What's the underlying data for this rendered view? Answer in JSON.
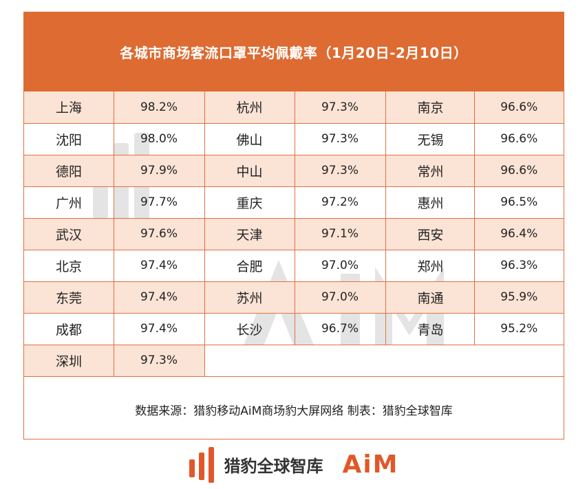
{
  "title": "各城市商场客流口罩平均佩戴率（1月20日-2月10日）",
  "source_note": "数据来源：猎豹移动AiM商场豹大屏网络  制表：猎豹全球智库",
  "footer": {
    "brand_name": "猎豹全球智库",
    "aim_logo": "AiM"
  },
  "colors": {
    "header": "#dd6b32",
    "shade": "#fbe3d5",
    "border": "#e07040",
    "aim": "#e0582a"
  },
  "chart_data": {
    "type": "table",
    "title": "各城市商场客流口罩平均佩戴率（1月20日-2月10日）",
    "unit": "%",
    "columns": [
      [
        {
          "city": "上海",
          "value": "98.2%"
        },
        {
          "city": "沈阳",
          "value": "98.0%"
        },
        {
          "city": "德阳",
          "value": "97.9%"
        },
        {
          "city": "广州",
          "value": "97.7%"
        },
        {
          "city": "武汉",
          "value": "97.6%"
        },
        {
          "city": "北京",
          "value": "97.4%"
        },
        {
          "city": "东莞",
          "value": "97.4%"
        },
        {
          "city": "成都",
          "value": "97.4%"
        },
        {
          "city": "深圳",
          "value": "97.3%"
        }
      ],
      [
        {
          "city": "杭州",
          "value": "97.3%"
        },
        {
          "city": "佛山",
          "value": "97.3%"
        },
        {
          "city": "中山",
          "value": "97.3%"
        },
        {
          "city": "重庆",
          "value": "97.2%"
        },
        {
          "city": "天津",
          "value": "97.1%"
        },
        {
          "city": "合肥",
          "value": "97.0%"
        },
        {
          "city": "苏州",
          "value": "97.0%"
        },
        {
          "city": "长沙",
          "value": "96.7%"
        }
      ],
      [
        {
          "city": "南京",
          "value": "96.6%"
        },
        {
          "city": "无锡",
          "value": "96.6%"
        },
        {
          "city": "常州",
          "value": "96.6%"
        },
        {
          "city": "惠州",
          "value": "96.5%"
        },
        {
          "city": "西安",
          "value": "96.4%"
        },
        {
          "city": "郑州",
          "value": "96.3%"
        },
        {
          "city": "南通",
          "value": "95.9%"
        },
        {
          "city": "青岛",
          "value": "95.2%"
        }
      ]
    ]
  }
}
